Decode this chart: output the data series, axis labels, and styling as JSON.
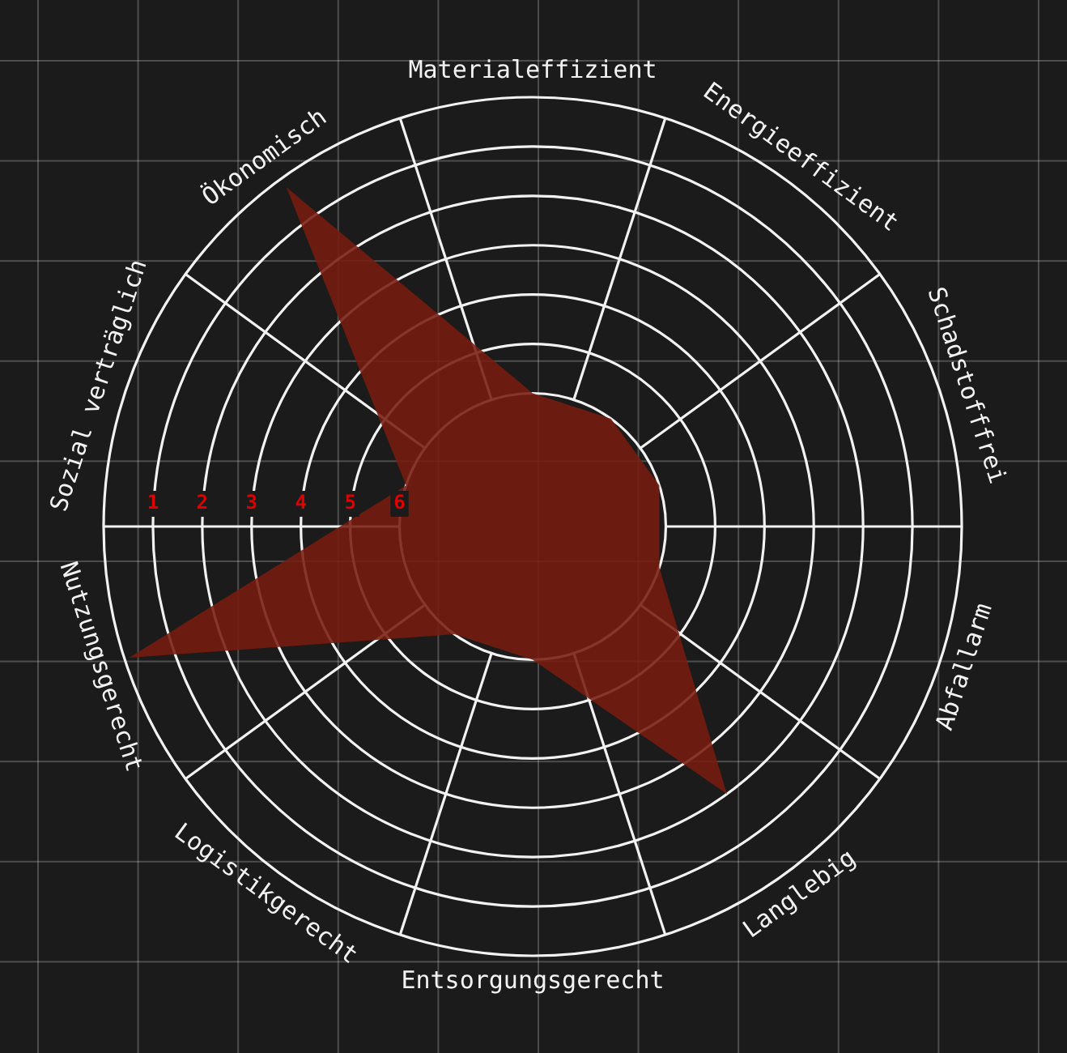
{
  "chart_data": {
    "type": "radar",
    "categories": [
      "Materialeffizient",
      "Energieeffizient",
      "Schadstofffrei",
      "Abfallarm",
      "Langlebig",
      "Entsorgungsgerecht",
      "Logistikgerecht",
      "Nutzungsgerecht",
      "Sozial verträglich",
      "Ökonomisch"
    ],
    "series": [
      {
        "color": "#761b0e",
        "values": [
          6,
          6,
          6,
          6,
          2,
          6,
          6,
          0.1,
          6,
          0.2
        ]
      }
    ],
    "ylim": [
      8.7,
      0
    ],
    "yticks": [
      1,
      2,
      3,
      4,
      5,
      6
    ],
    "grid": true,
    "legend": false
  }
}
